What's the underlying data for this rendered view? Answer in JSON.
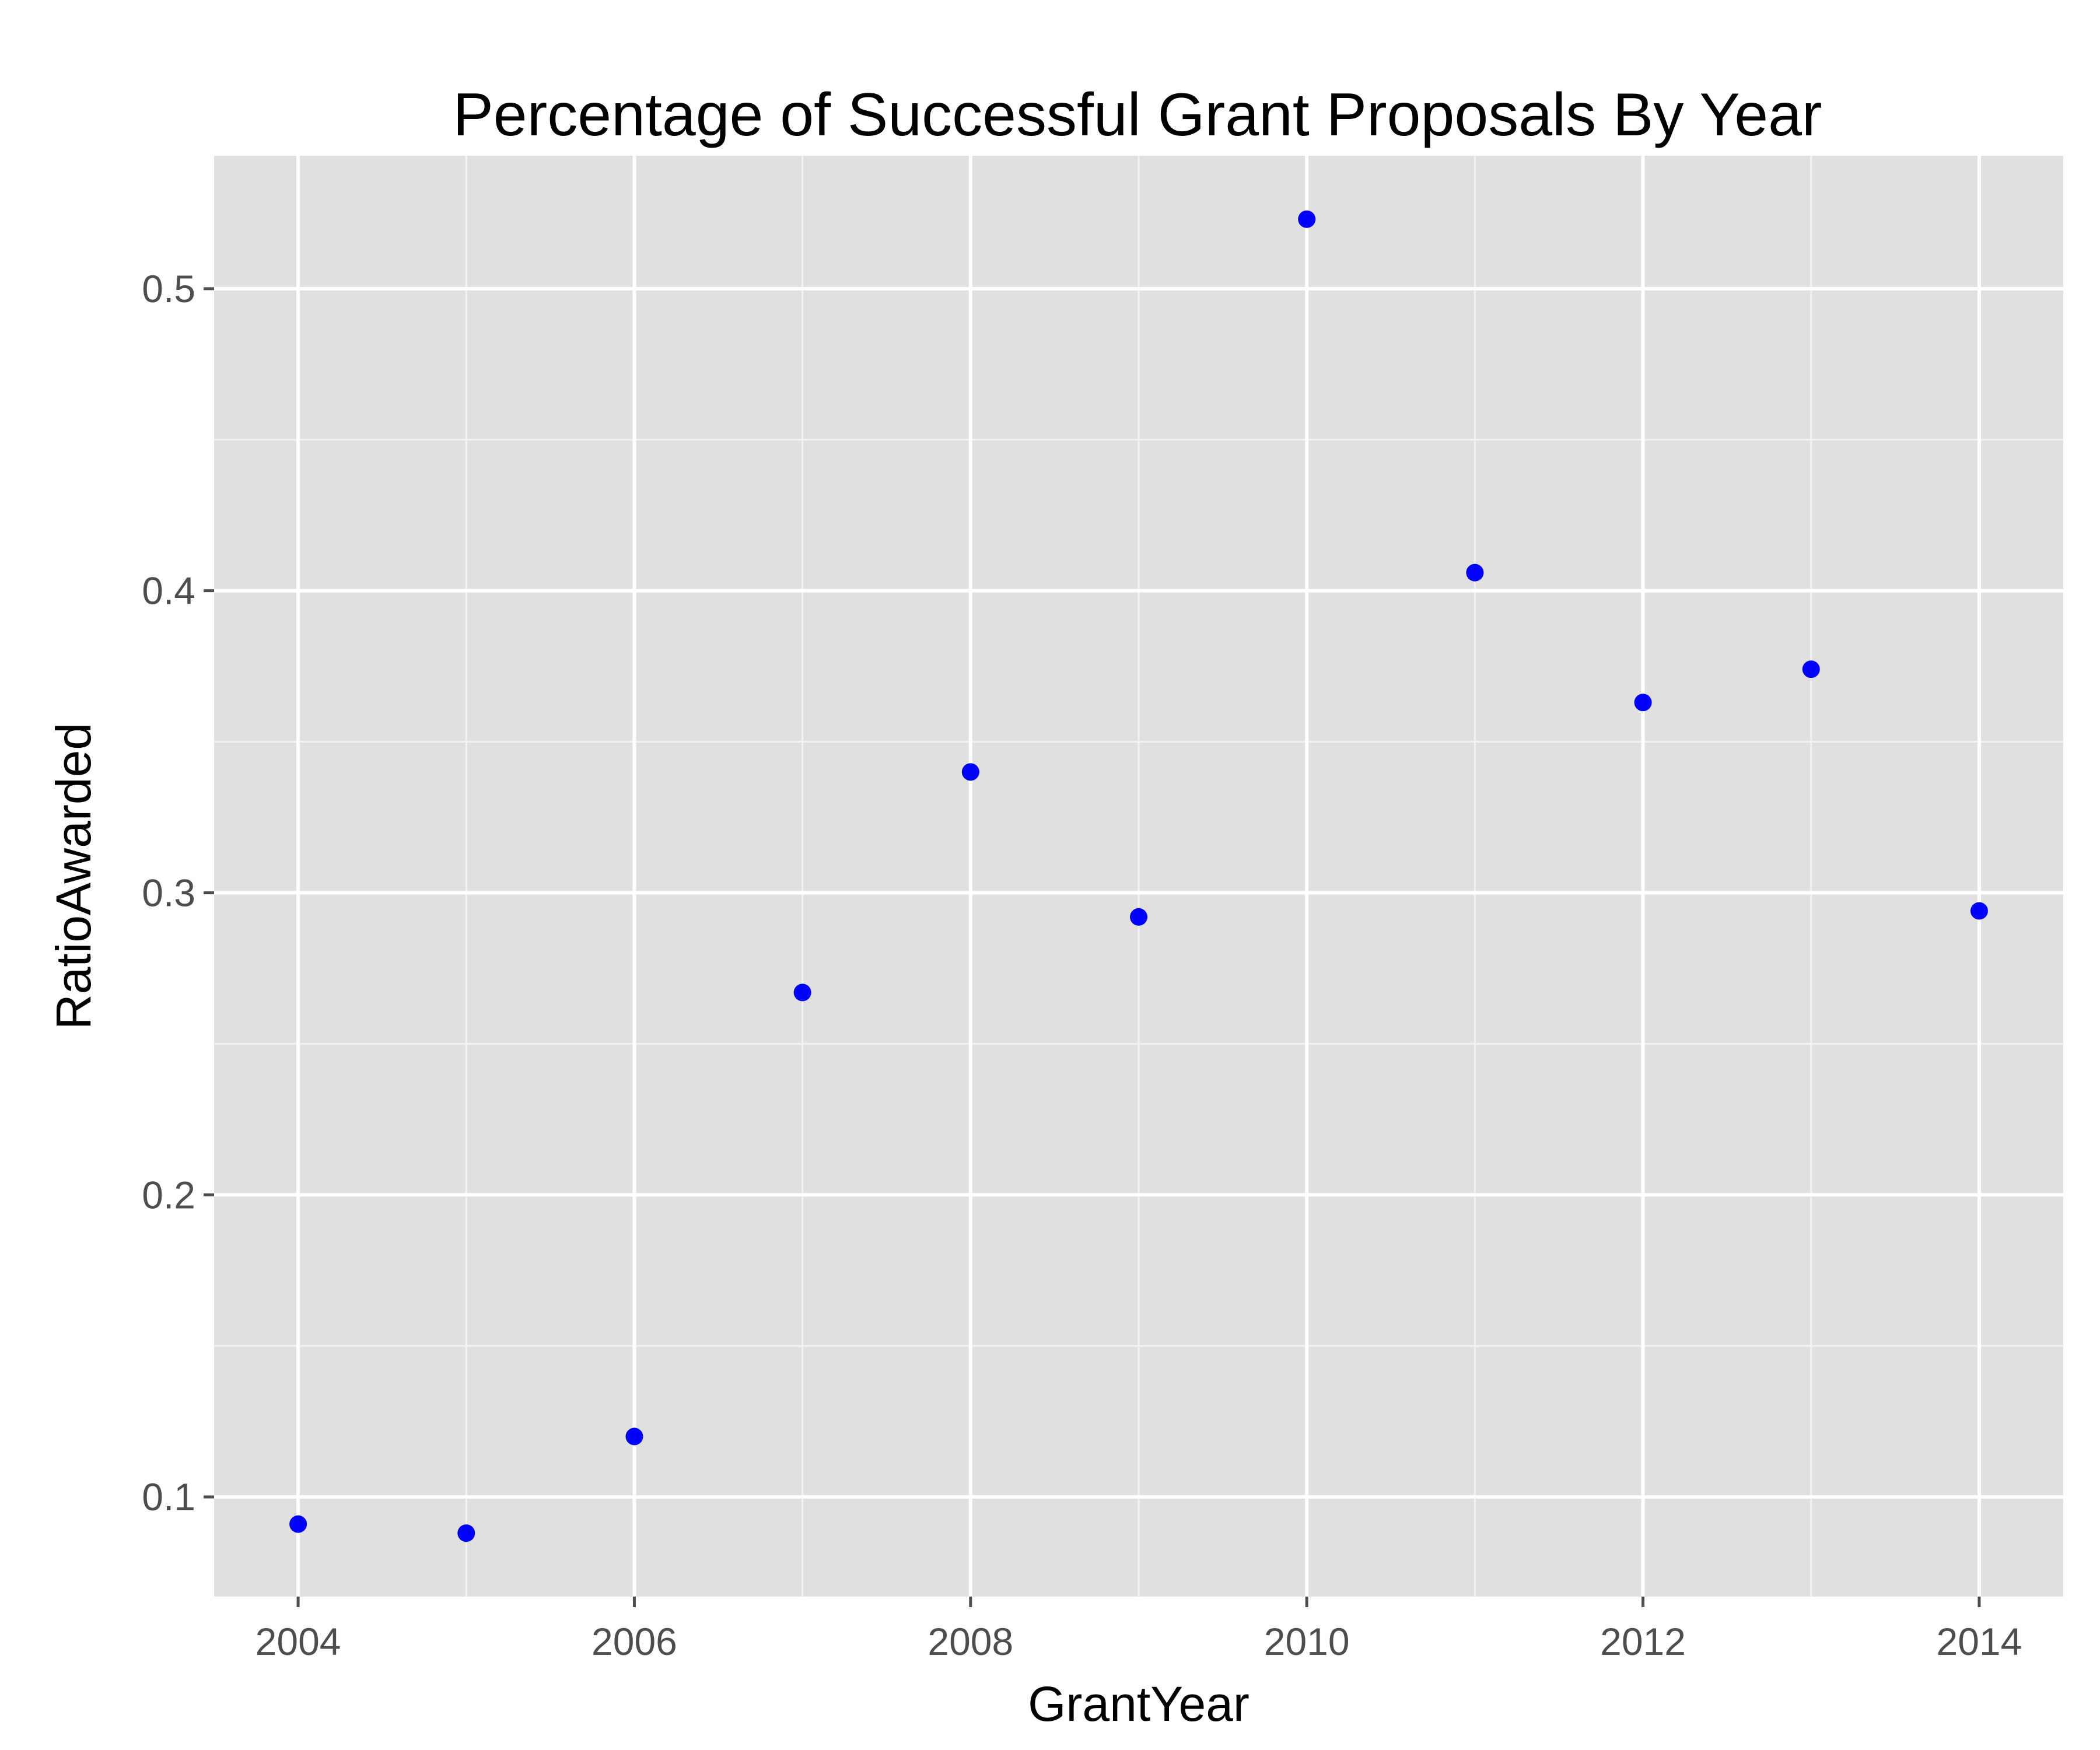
{
  "chart_data": {
    "type": "scatter",
    "title": "Percentage of Successful Grant Proposals By Year",
    "xlabel": "GrantYear",
    "ylabel": "RatioAwarded",
    "xlim": [
      2003.5,
      2014.5
    ],
    "ylim": [
      0.067,
      0.544
    ],
    "x_ticks": [
      2004,
      2006,
      2008,
      2010,
      2012,
      2014
    ],
    "x_tick_labels": [
      "2004",
      "2006",
      "2008",
      "2010",
      "2012",
      "2014"
    ],
    "y_ticks": [
      0.1,
      0.2,
      0.3,
      0.4,
      0.5
    ],
    "y_tick_labels": [
      "0.1",
      "0.2",
      "0.3",
      "0.4",
      "0.5"
    ],
    "grid": true,
    "panel_color": "#e0e0e0",
    "point_color": "#0000ff",
    "series": [
      {
        "x": [
          2004,
          2005,
          2006,
          2007,
          2008,
          2009,
          2010,
          2011,
          2012,
          2013,
          2014
        ],
        "y": [
          0.091,
          0.088,
          0.12,
          0.267,
          0.34,
          0.292,
          0.523,
          0.406,
          0.363,
          0.374,
          0.294
        ]
      }
    ]
  }
}
